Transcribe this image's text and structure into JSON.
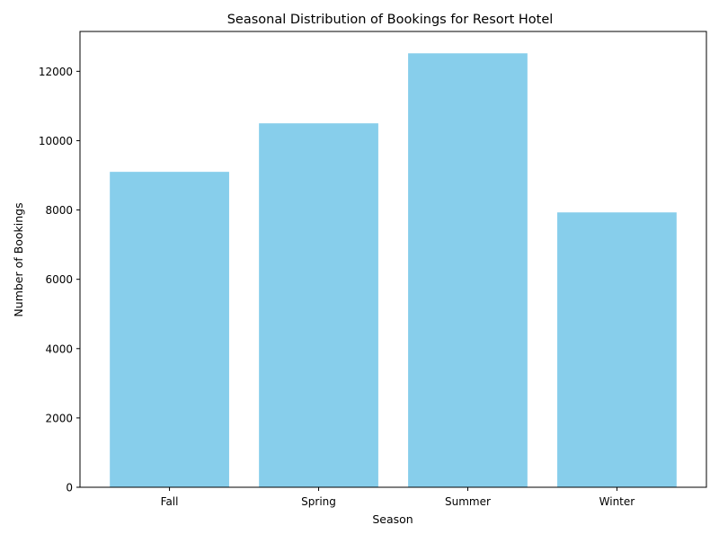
{
  "chart_data": {
    "type": "bar",
    "title": "Seasonal Distribution of Bookings for Resort Hotel",
    "xlabel": "Season",
    "ylabel": "Number of Bookings",
    "categories": [
      "Fall",
      "Spring",
      "Summer",
      "Winter"
    ],
    "values": [
      9100,
      10500,
      12520,
      7930
    ],
    "ylim": [
      0,
      13150
    ],
    "yticks": [
      0,
      2000,
      4000,
      6000,
      8000,
      10000,
      12000
    ],
    "bar_color": "#87ceeb",
    "grid": false,
    "legend": "none"
  }
}
